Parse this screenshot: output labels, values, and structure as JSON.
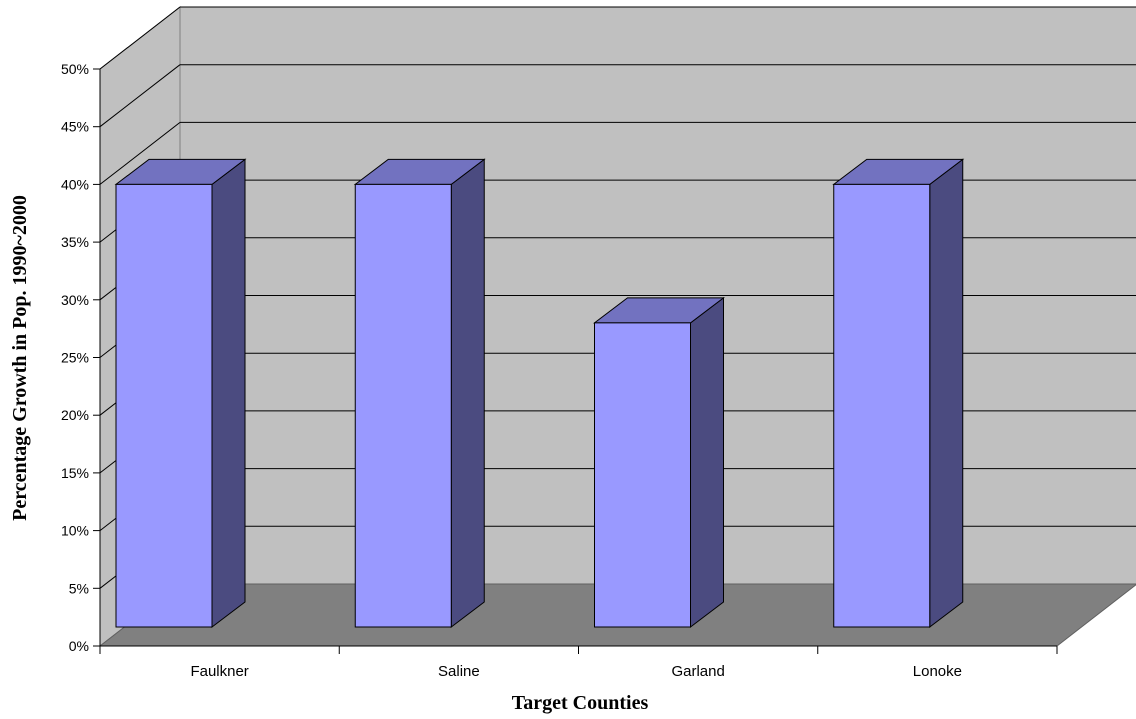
{
  "chart_data": {
    "type": "bar",
    "style": "3d-column",
    "categories": [
      "Faulkner",
      "Saline",
      "Garland",
      "Lonoke"
    ],
    "values": [
      40,
      40,
      28,
      40
    ],
    "xlabel": "Target Counties",
    "ylabel": "Percentage Growth in Pop. 1990~2000",
    "ylim": [
      0,
      50
    ],
    "y_ticks": [
      0,
      5,
      10,
      15,
      20,
      25,
      30,
      35,
      40,
      45,
      50
    ],
    "y_tick_suffix": "%",
    "grid": true,
    "legend": "none",
    "colors": {
      "bar_front": "#9999ff",
      "bar_side": "#4b4b80",
      "bar_top": "#7272c0",
      "back_wall": "#c0c0c0",
      "side_wall": "#c0c0c0",
      "floor": "#808080",
      "gridline": "#000000"
    }
  }
}
